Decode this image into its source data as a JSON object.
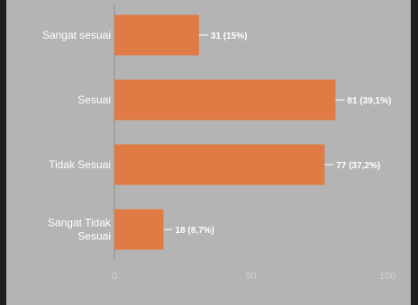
{
  "chart_data": {
    "type": "bar",
    "orientation": "horizontal",
    "categories": [
      "Sangat sesuai",
      "Sesuai",
      "Tidak Sesuai",
      "Sangat Tidak Sesuai"
    ],
    "values": [
      31,
      81,
      77,
      18
    ],
    "data_labels": [
      "31 (15%)",
      "81 (39,1%)",
      "77 (37,2%)",
      "18 (8,7%)"
    ],
    "xticks": [
      0,
      50,
      100
    ],
    "xlim": [
      0,
      100
    ],
    "title": "",
    "xlabel": "",
    "ylabel": "",
    "grid": false,
    "bar_color": "#e07b45"
  }
}
